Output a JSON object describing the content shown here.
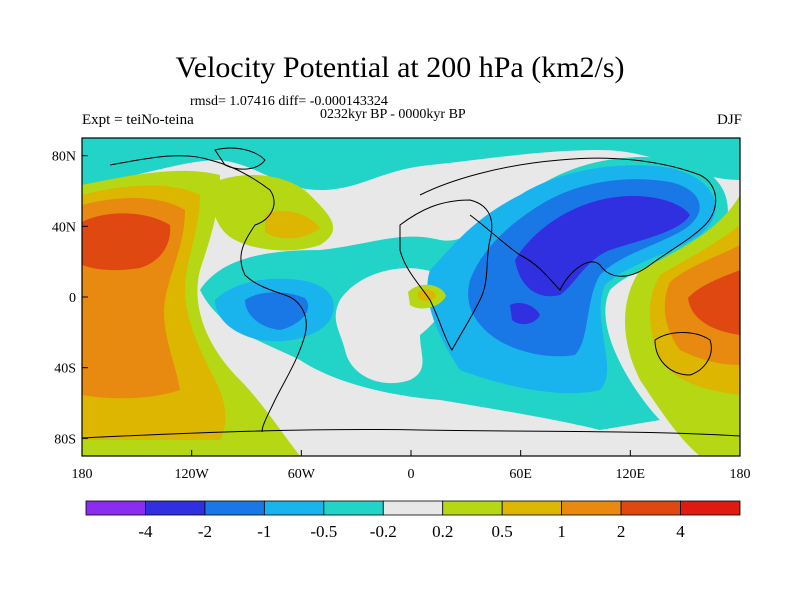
{
  "chart_data": {
    "type": "heatmap",
    "title": "Velocity Potential at 200 hPa (km2/s)",
    "stats_label": "rmsd= 1.07416 diff= -0.000143324",
    "period_label": "0232kyr BP - 0000kyr BP",
    "experiment_label": "Expt = teiNo-teina",
    "season_label": "DJF",
    "x_ticks": [
      "180",
      "120W",
      "60W",
      "0",
      "60E",
      "120E",
      "180"
    ],
    "y_ticks": [
      "80N",
      "40N",
      "0",
      "40S",
      "80S"
    ],
    "x_range": [
      -180,
      180
    ],
    "y_range": [
      -90,
      90
    ],
    "colorbar": {
      "levels": [
        "-4",
        "-2",
        "-1",
        "-0.5",
        "-0.2",
        "0.2",
        "0.5",
        "1",
        "2",
        "4"
      ],
      "colors": [
        "#8c2cf0",
        "#3030e0",
        "#1a78e6",
        "#19b4ee",
        "#22d3c8",
        "#e8e8e8",
        "#b6d714",
        "#dcb600",
        "#e88a10",
        "#e04812",
        "#e01a10"
      ]
    },
    "regions": [
      {
        "name": "Central Pacific positive center",
        "value_class": "2",
        "lon": -155,
        "lat": 25
      },
      {
        "name": "Western Pacific / Maritime Continent positive center",
        "value_class": "2",
        "lon": 150,
        "lat": 5
      },
      {
        "name": "Asian negative center",
        "value_class": "-2",
        "lon": 100,
        "lat": 30
      },
      {
        "name": "Indian Ocean negative center",
        "value_class": "-2",
        "lon": 60,
        "lat": -10
      },
      {
        "name": "South America negative",
        "value_class": "-1",
        "lon": -55,
        "lat": -5
      },
      {
        "name": "Gulf of Guinea positive",
        "value_class": "1",
        "lon": 10,
        "lat": -2
      }
    ]
  }
}
